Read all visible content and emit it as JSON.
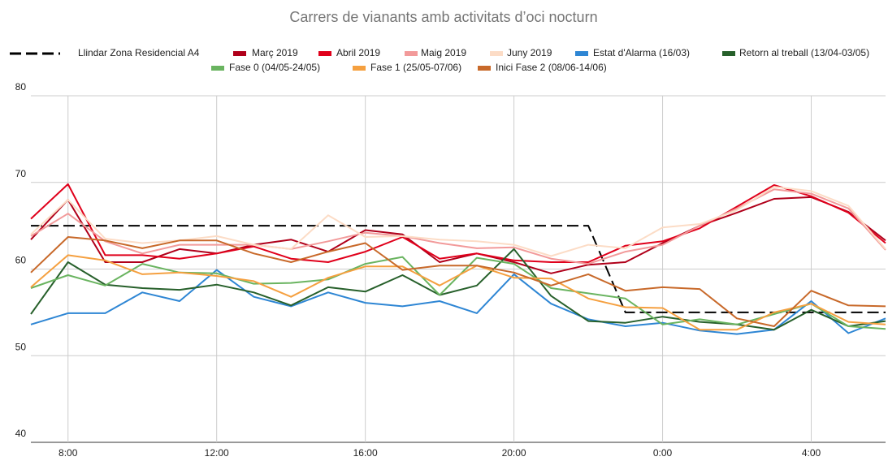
{
  "chart_data": {
    "type": "line",
    "title": "Carrers de vianants amb activitats d’oci nocturn",
    "categories": [
      null,
      "8:00",
      null,
      null,
      null,
      "12:00",
      null,
      null,
      null,
      "16:00",
      null,
      null,
      null,
      "20:00",
      null,
      null,
      null,
      "0:00",
      null,
      null,
      null,
      "4:00",
      null,
      null
    ],
    "ylim": [
      40,
      80
    ],
    "yticks": [
      40,
      50,
      60,
      70,
      80
    ],
    "grid": true,
    "series": [
      {
        "name": "Llindar Zona Residencial A4",
        "color": "#000000",
        "dashed": true,
        "values": [
          65,
          65,
          65,
          65,
          65,
          65,
          65,
          65,
          65,
          65,
          65,
          65,
          65,
          65,
          65,
          65,
          55,
          55,
          55,
          55,
          55,
          55,
          55,
          55
        ]
      },
      {
        "name": "Març 2019",
        "color": "#b0001a",
        "values": [
          63.4,
          68,
          60.8,
          60.8,
          62.3,
          61.8,
          62.8,
          63.4,
          62,
          64.5,
          64,
          60.8,
          61.8,
          60.8,
          59.5,
          60.5,
          60.8,
          63,
          65,
          66.5,
          68.1,
          68.3,
          66.6,
          63.3
        ]
      },
      {
        "name": "Abril 2019",
        "color": "#e0001b",
        "values": [
          65.8,
          69.8,
          61.6,
          61.6,
          61.2,
          61.8,
          62.6,
          61.2,
          60.8,
          62,
          63.7,
          61.2,
          61.8,
          61,
          60.8,
          60.8,
          62.7,
          63.2,
          64.7,
          67.2,
          69.7,
          68.4,
          66.5,
          63
        ]
      },
      {
        "name": "Maig 2019",
        "color": "#f29a9a",
        "values": [
          63.8,
          66.4,
          63.2,
          61.8,
          62.8,
          62.8,
          62.8,
          62.3,
          63.2,
          64.2,
          63.8,
          63,
          62.4,
          62.5,
          61.2,
          60.6,
          62,
          62.8,
          65,
          67,
          69.2,
          68.7,
          67,
          62.2
        ]
      },
      {
        "name": "Juny 2019",
        "color": "#fcdcc6",
        "values": [
          64,
          68,
          63.5,
          63,
          63.3,
          63.8,
          62.8,
          62.3,
          66.2,
          63.7,
          63.8,
          63.4,
          63.2,
          62.8,
          61.5,
          62.8,
          62.4,
          64.8,
          65.2,
          66.8,
          69.5,
          69,
          67.3,
          62.3
        ]
      },
      {
        "name": "Estat d'Alarma (16/03)",
        "color": "#2e86d4",
        "values": [
          53.6,
          54.9,
          54.9,
          57.3,
          56.3,
          59.9,
          56.8,
          55.7,
          57.3,
          56.1,
          55.7,
          56.3,
          54.9,
          59.4,
          56,
          54.2,
          53.4,
          53.8,
          52.9,
          52.5,
          53,
          56.3,
          52.6,
          54.3
        ]
      },
      {
        "name": "Retorn al treball (13/04-03/05)",
        "color": "#27602b",
        "values": [
          54.8,
          60.8,
          58.2,
          57.8,
          57.6,
          58.2,
          57.3,
          55.8,
          57.9,
          57.4,
          59.3,
          57,
          58.1,
          62.3,
          56.9,
          54,
          53.8,
          54.5,
          53.9,
          53.6,
          53,
          55.3,
          53.4,
          54
        ]
      },
      {
        "name": "Fase 0 (04/05-24/05)",
        "color": "#6ab460",
        "values": [
          57.8,
          59.3,
          58.1,
          60.6,
          59.6,
          59.5,
          58.3,
          58.4,
          58.8,
          60.6,
          61.4,
          57,
          61.3,
          60.6,
          57.8,
          57.2,
          56.6,
          53.6,
          54.2,
          53.6,
          54.8,
          56,
          53.4,
          53.1
        ]
      },
      {
        "name": "Fase 1 (25/05-07/06)",
        "color": "#f5a040",
        "values": [
          57.9,
          61.6,
          61,
          59.4,
          59.6,
          59.2,
          58.6,
          56.8,
          59,
          60.3,
          60.3,
          58.1,
          60.4,
          59,
          58.9,
          56.6,
          55.6,
          55.5,
          53,
          53,
          55,
          56,
          53.9,
          53.6
        ]
      },
      {
        "name": "Inici Fase 2 (08/06-14/06)",
        "color": "#c8692a",
        "values": [
          59.6,
          63.7,
          63.3,
          62.4,
          63.3,
          63.3,
          61.8,
          60.8,
          62,
          63,
          59.9,
          60.4,
          60.4,
          59.6,
          58.1,
          59.4,
          57.5,
          57.9,
          57.7,
          54.3,
          53.4,
          57.5,
          55.8,
          55.7
        ]
      }
    ]
  }
}
